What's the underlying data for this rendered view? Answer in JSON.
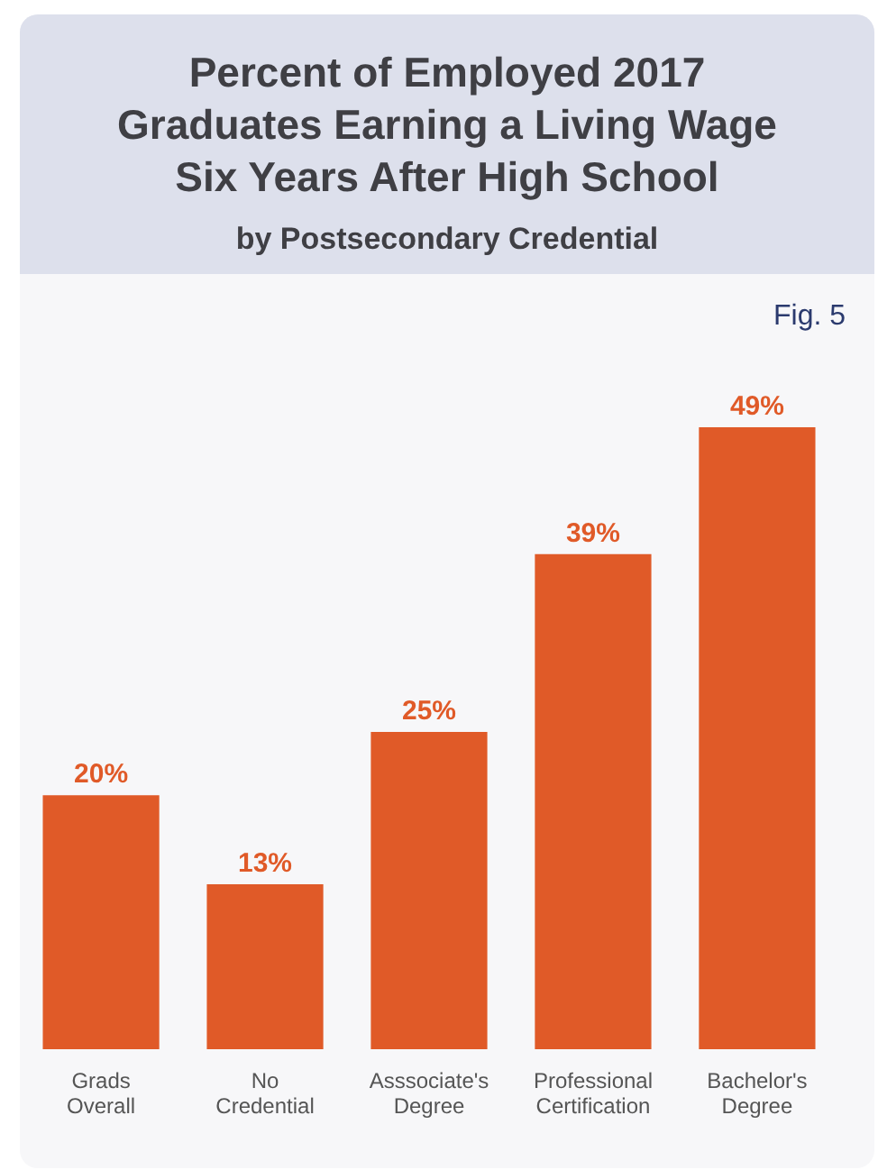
{
  "chart_data": {
    "type": "bar",
    "title": "Percent of Employed 2017 Graduates Earning a Living Wage Six Years After High School",
    "subtitle": "by Postsecondary Credential",
    "annotations": [
      "Fig. 5"
    ],
    "categories": [
      "Grads Overall",
      "No Credential",
      "Asssociate's Degree",
      "Professional Certification",
      "Bachelor's Degree"
    ],
    "values": [
      20,
      13,
      25,
      39,
      49
    ],
    "value_labels": [
      "20%",
      "13%",
      "25%",
      "39%",
      "49%"
    ],
    "color": "#e05a28"
  }
}
